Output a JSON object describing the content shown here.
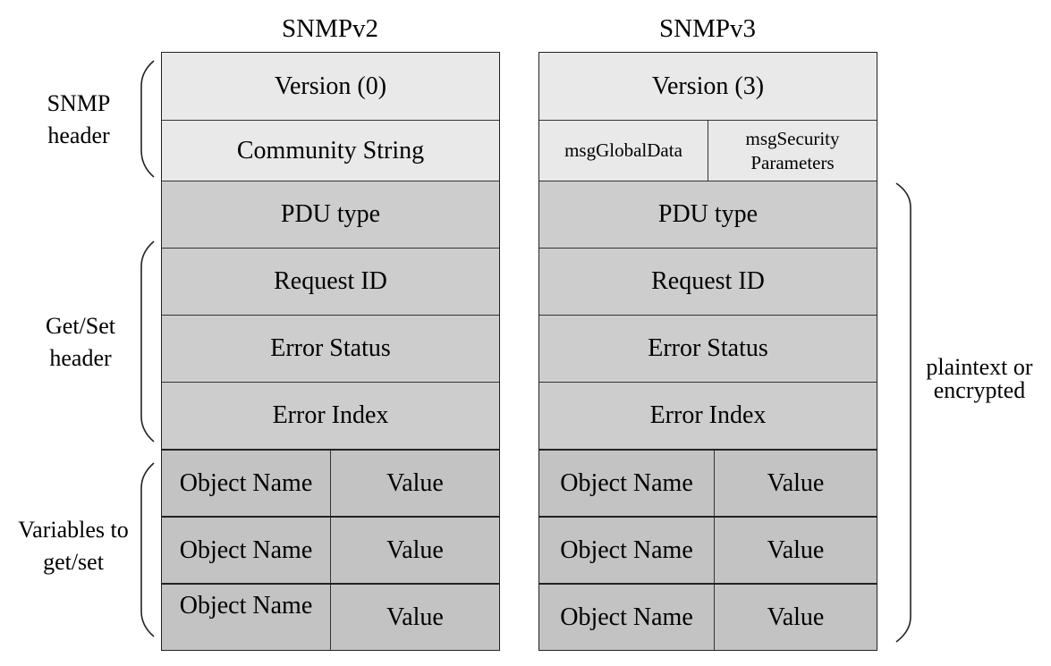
{
  "columns": [
    {
      "title": "SNMPv2",
      "version": "Version (0)",
      "community": "Community String",
      "pdu_type": "PDU type",
      "request_id": "Request ID",
      "error_status": "Error Status",
      "error_index": "Error Index",
      "variables": [
        {
          "name": "Object Name",
          "value": "Value"
        },
        {
          "name": "Object Name",
          "value": "Value"
        },
        {
          "name": "Object Name",
          "value": "Value"
        }
      ]
    },
    {
      "title": "SNMPv3",
      "version": "Version (3)",
      "global_data": "msgGlobalData",
      "security_params": "msgSecurity Parameters",
      "pdu_type": "PDU type",
      "request_id": "Request ID",
      "error_status": "Error Status",
      "error_index": "Error Index",
      "variables": [
        {
          "name": "Object Name",
          "value": "Value"
        },
        {
          "name": "Object Name",
          "value": "Value"
        },
        {
          "name": "Object Name",
          "value": "Value"
        }
      ]
    }
  ],
  "labels": {
    "snmp_header": "SNMP header",
    "getset_header": "Get/Set header",
    "variables": "Variables to get/set",
    "plaintext": "plaintext or encrypted"
  }
}
